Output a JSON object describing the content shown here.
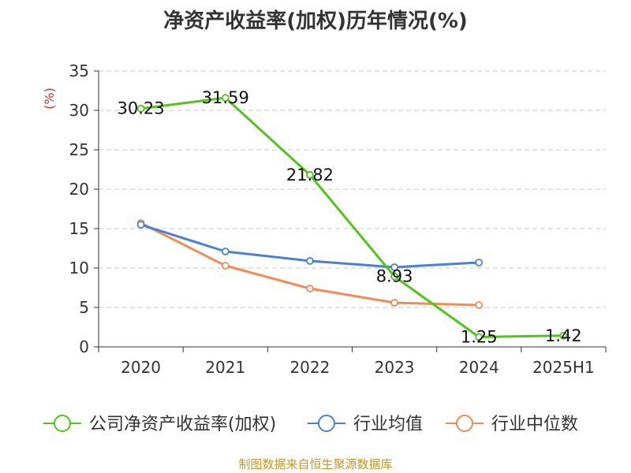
{
  "chart_data": {
    "type": "line",
    "title": "净资产收益率(加权)历年情况(%)",
    "unit_label": "(%)",
    "categories": [
      "2020",
      "2021",
      "2022",
      "2023",
      "2024",
      "2025H1"
    ],
    "ylim": [
      0,
      35
    ],
    "yticks": [
      0,
      5,
      10,
      15,
      20,
      25,
      30,
      35
    ],
    "grid": true,
    "legend_position": "bottom",
    "series": [
      {
        "name": "公司净资产收益率(加权)",
        "color": "#52c41a",
        "values": [
          30.23,
          31.59,
          21.82,
          8.93,
          1.25,
          1.42
        ],
        "labels": [
          "30.23",
          "31.59",
          "21.82",
          "8.93",
          "1.25",
          "1.42"
        ]
      },
      {
        "name": "行业均值",
        "color": "#4a7fdb",
        "values": [
          15.5,
          12.1,
          10.9,
          10.1,
          10.7,
          null
        ]
      },
      {
        "name": "行业中位数",
        "color": "#f58a55",
        "values": [
          15.7,
          10.3,
          7.4,
          5.6,
          5.3,
          null
        ]
      }
    ]
  },
  "footer": {
    "source": "制图数据来自恒生聚源数据库"
  }
}
